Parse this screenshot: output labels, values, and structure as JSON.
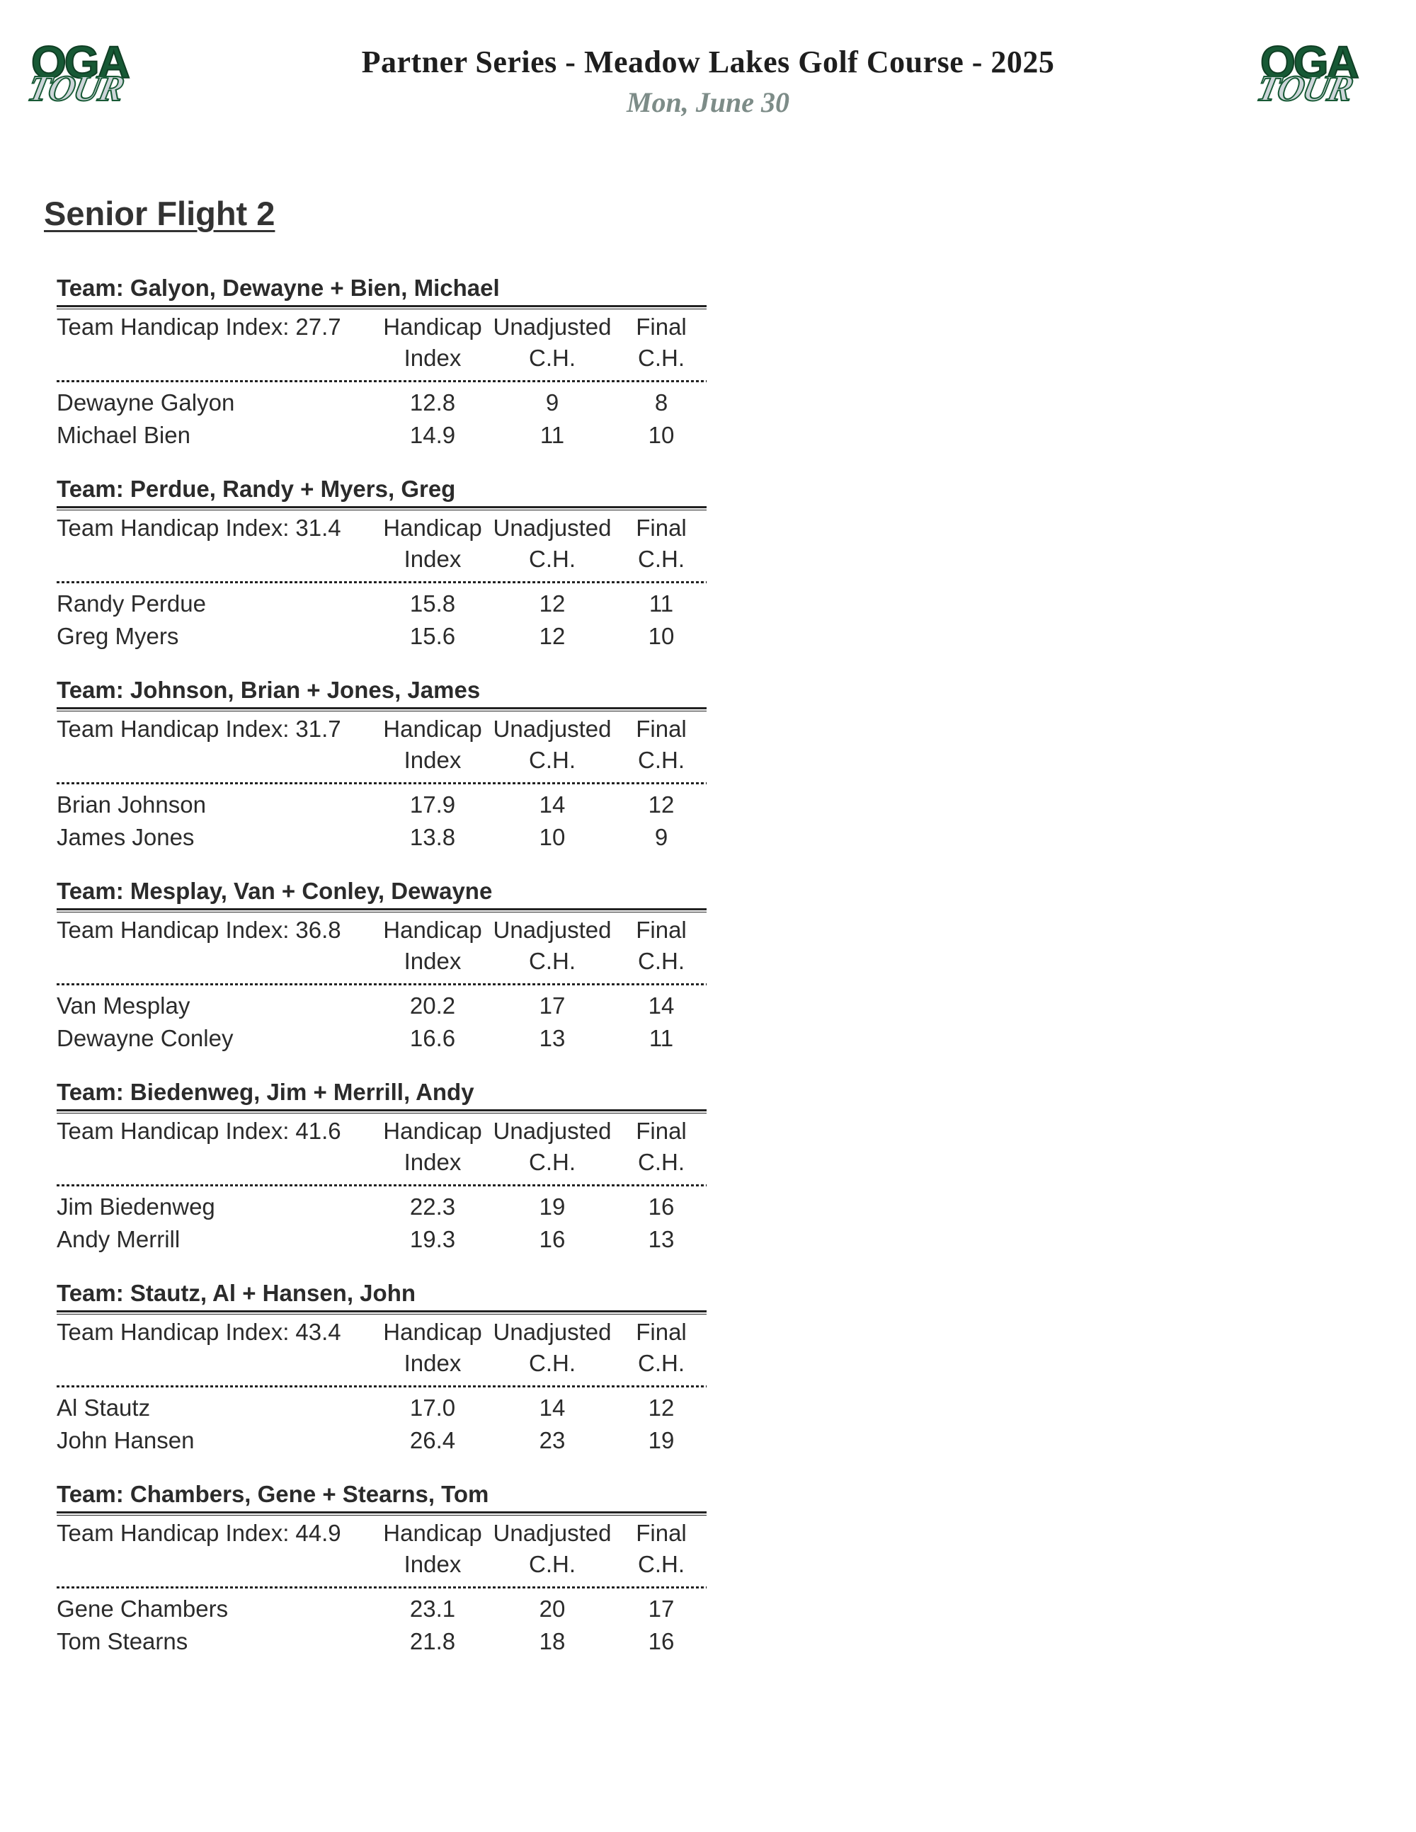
{
  "header": {
    "title": "Partner Series - Meadow Lakes Golf Course - 2025",
    "date": "Mon, June 30"
  },
  "logo": {
    "line1": "OGA",
    "line2": "TOUR"
  },
  "flight": {
    "title": "Senior Flight 2"
  },
  "table_headers": {
    "team_handicap_prefix": "Team Handicap Index:",
    "col2_line1": "Handicap",
    "col2_line2": "Index",
    "col3_line1": "Unadjusted",
    "col3_line2": "C.H.",
    "col4_line1": "Final",
    "col4_line2": "C.H."
  },
  "teams": [
    {
      "name": "Team: Galyon, Dewayne + Bien, Michael",
      "team_handicap_index": "27.7",
      "players": [
        {
          "name": "Dewayne Galyon",
          "handicap_index": "12.8",
          "unadjusted_ch": "9",
          "final_ch": "8"
        },
        {
          "name": "Michael Bien",
          "handicap_index": "14.9",
          "unadjusted_ch": "11",
          "final_ch": "10"
        }
      ]
    },
    {
      "name": "Team: Perdue, Randy + Myers, Greg",
      "team_handicap_index": "31.4",
      "players": [
        {
          "name": "Randy Perdue",
          "handicap_index": "15.8",
          "unadjusted_ch": "12",
          "final_ch": "11"
        },
        {
          "name": "Greg Myers",
          "handicap_index": "15.6",
          "unadjusted_ch": "12",
          "final_ch": "10"
        }
      ]
    },
    {
      "name": "Team: Johnson, Brian + Jones, James",
      "team_handicap_index": "31.7",
      "players": [
        {
          "name": "Brian Johnson",
          "handicap_index": "17.9",
          "unadjusted_ch": "14",
          "final_ch": "12"
        },
        {
          "name": "James Jones",
          "handicap_index": "13.8",
          "unadjusted_ch": "10",
          "final_ch": "9"
        }
      ]
    },
    {
      "name": "Team: Mesplay, Van + Conley, Dewayne",
      "team_handicap_index": "36.8",
      "players": [
        {
          "name": "Van Mesplay",
          "handicap_index": "20.2",
          "unadjusted_ch": "17",
          "final_ch": "14"
        },
        {
          "name": "Dewayne Conley",
          "handicap_index": "16.6",
          "unadjusted_ch": "13",
          "final_ch": "11"
        }
      ]
    },
    {
      "name": "Team: Biedenweg, Jim + Merrill, Andy",
      "team_handicap_index": "41.6",
      "players": [
        {
          "name": "Jim Biedenweg",
          "handicap_index": "22.3",
          "unadjusted_ch": "19",
          "final_ch": "16"
        },
        {
          "name": "Andy Merrill",
          "handicap_index": "19.3",
          "unadjusted_ch": "16",
          "final_ch": "13"
        }
      ]
    },
    {
      "name": "Team: Stautz, Al + Hansen, John",
      "team_handicap_index": "43.4",
      "players": [
        {
          "name": "Al Stautz",
          "handicap_index": "17.0",
          "unadjusted_ch": "14",
          "final_ch": "12"
        },
        {
          "name": "John Hansen",
          "handicap_index": "26.4",
          "unadjusted_ch": "23",
          "final_ch": "19"
        }
      ]
    },
    {
      "name": "Team: Chambers, Gene + Stearns, Tom",
      "team_handicap_index": "44.9",
      "players": [
        {
          "name": "Gene Chambers",
          "handicap_index": "23.1",
          "unadjusted_ch": "20",
          "final_ch": "17"
        },
        {
          "name": "Tom Stearns",
          "handicap_index": "21.8",
          "unadjusted_ch": "18",
          "final_ch": "16"
        }
      ]
    }
  ],
  "colors": {
    "logo_green": "#175935",
    "logo_tour_fill": "#cdd5d9",
    "date_gray_green": "#7d8c88",
    "text": "#2b2b2b"
  }
}
